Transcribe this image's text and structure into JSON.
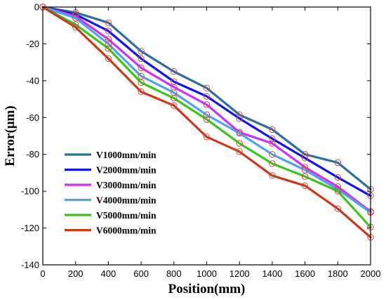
{
  "chart_data": {
    "type": "line",
    "title": "",
    "xlabel": "Position(mm)",
    "ylabel": "Error(μm)",
    "xlim": [
      0,
      2000
    ],
    "ylim": [
      -140,
      0
    ],
    "xticks": [
      0,
      200,
      400,
      600,
      800,
      1000,
      1200,
      1400,
      1600,
      1800,
      2000
    ],
    "yticks": [
      0,
      -20,
      -40,
      -60,
      -80,
      -100,
      -120,
      -140
    ],
    "x": [
      0,
      200,
      400,
      600,
      800,
      1000,
      1200,
      1400,
      1600,
      1800,
      2000
    ],
    "grid": false,
    "legend_position": "bottom-left",
    "marker": "circle",
    "series": [
      {
        "name": "V1000mm/min",
        "color": "#2c6e9c",
        "values": [
          0,
          -3,
          -8.5,
          -24,
          -35,
          -44,
          -58.5,
          -66.5,
          -80,
          -84.5,
          -99
        ]
      },
      {
        "name": "V2000mm/min",
        "color": "#1414e0",
        "values": [
          0,
          -4,
          -13,
          -28,
          -40.5,
          -48.5,
          -60.5,
          -71.5,
          -82,
          -92.5,
          -102.5
        ]
      },
      {
        "name": "V3000mm/min",
        "color": "#cc33ee",
        "values": [
          0,
          -5,
          -17.5,
          -33,
          -43.5,
          -53,
          -68,
          -74,
          -87,
          -97.5,
          -111
        ]
      },
      {
        "name": "V4000mm/min",
        "color": "#4da6e0",
        "values": [
          0,
          -6,
          -20,
          -37.5,
          -46.5,
          -58.5,
          -68.5,
          -80,
          -88.5,
          -99,
          -111.5
        ]
      },
      {
        "name": "V5000mm/min",
        "color": "#3dc21e",
        "values": [
          0,
          -9.5,
          -22.5,
          -41,
          -49.5,
          -61,
          -74,
          -85,
          -92,
          -100,
          -119.5
        ]
      },
      {
        "name": "V6000mm/min",
        "color": "#c8381c",
        "values": [
          0,
          -11,
          -28,
          -46,
          -53.5,
          -70.5,
          -78.5,
          -91.5,
          -97,
          -109.5,
          -125
        ]
      }
    ]
  }
}
